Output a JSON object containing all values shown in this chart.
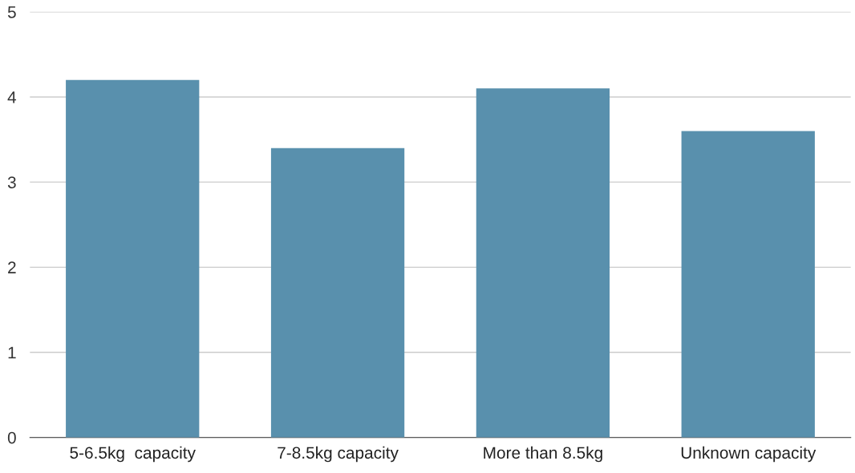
{
  "chart_data": {
    "type": "bar",
    "categories": [
      "5-6.5kg  capacity",
      "7-8.5kg capacity",
      "More than 8.5kg",
      "Unknown capacity"
    ],
    "values": [
      4.2,
      3.4,
      4.1,
      3.6
    ],
    "color": "#5990ad",
    "ylim": [
      0,
      5
    ],
    "yticks": [
      0,
      1,
      2,
      3,
      4,
      5
    ],
    "grid": "y"
  }
}
